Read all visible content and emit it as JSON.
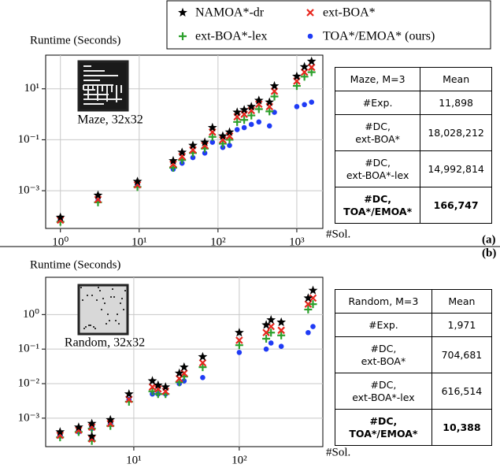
{
  "legend_corner": "top",
  "chart_data": [
    {
      "type": "scatter",
      "panel": "(a)",
      "inset_label": "Maze, 32x32",
      "x_label": "#Sol.",
      "y_label": "Runtime (Seconds)",
      "log_x": true,
      "log_y": true,
      "grid": true,
      "xlim": [
        0.65,
        2140
      ],
      "ylim": [
        3.3e-05,
        210
      ],
      "xticks": [
        {
          "value": 1,
          "label": "10⁰"
        },
        {
          "value": 10,
          "label": "10¹"
        },
        {
          "value": 100,
          "label": "10²"
        },
        {
          "value": 1000,
          "label": "10³"
        }
      ],
      "yticks": [
        {
          "value": 0.001,
          "label": "10⁻³"
        },
        {
          "value": 0.1,
          "label": "10⁻¹"
        },
        {
          "value": 10,
          "label": "10¹"
        }
      ],
      "x": [
        1,
        3,
        9.5,
        27,
        35,
        48,
        68,
        85,
        115,
        140,
        175,
        215,
        265,
        330,
        450,
        520,
        1000,
        1250,
        1540
      ],
      "series": [
        {
          "name": "NAMOA*-dr",
          "color": "#000000",
          "marker": "star",
          "values": [
            9e-05,
            0.00066,
            0.0023,
            0.015,
            0.032,
            0.06,
            0.08,
            0.3,
            0.14,
            0.2,
            1.2,
            1.5,
            2,
            3.5,
            3,
            13,
            31,
            73,
            120
          ]
        },
        {
          "name": "ext-BOA*",
          "color": "#e8271e",
          "marker": "x",
          "values": [
            7e-05,
            0.00045,
            0.0017,
            0.011,
            0.022,
            0.04,
            0.06,
            0.2,
            0.1,
            0.14,
            0.8,
            1,
            1.4,
            2.5,
            2,
            8,
            20,
            45,
            70
          ]
        },
        {
          "name": "ext-BOA*-lex",
          "color": "#2ca02c",
          "marker": "plus",
          "values": [
            6e-05,
            0.00035,
            0.0014,
            0.008,
            0.016,
            0.03,
            0.045,
            0.13,
            0.07,
            0.1,
            0.5,
            0.6,
            0.9,
            1.6,
            1.3,
            5,
            13,
            30,
            45
          ]
        },
        {
          "name": "TOA*/EMOA* (ours)",
          "color": "#1f3bf5",
          "marker": "circle",
          "values": [
            7e-05,
            0.0004,
            0.0016,
            0.007,
            0.012,
            0.02,
            0.03,
            0.08,
            0.05,
            0.06,
            0.25,
            0.3,
            0.4,
            0.5,
            0.35,
            1.2,
            2,
            2.4,
            3
          ]
        }
      ]
    },
    {
      "type": "scatter",
      "panel": "(b)",
      "inset_label": "Random, 32x32",
      "x_label": "#Sol.",
      "y_label": "Runtime (Seconds)",
      "log_x": true,
      "log_y": true,
      "grid": true,
      "xlim": [
        1.46,
        620
      ],
      "ylim": [
        0.00015,
        12
      ],
      "xticks": [
        {
          "value": 10,
          "label": "10¹"
        },
        {
          "value": 100,
          "label": "10²"
        }
      ],
      "yticks": [
        {
          "value": 0.001,
          "label": "10⁻³"
        },
        {
          "value": 0.01,
          "label": "10⁻²"
        },
        {
          "value": 0.1,
          "label": "10⁻¹"
        },
        {
          "value": 1,
          "label": "10⁰"
        }
      ],
      "x": [
        2,
        3,
        4,
        4,
        6,
        9,
        15,
        17,
        20,
        27,
        30,
        45,
        100,
        180,
        200,
        250,
        450,
        500
      ],
      "series": [
        {
          "color": "#000000",
          "marker": "star",
          "values": [
            0.0004,
            0.00055,
            0.0007,
            0.0003,
            0.0009,
            0.005,
            0.012,
            0.009,
            0.008,
            0.02,
            0.03,
            0.06,
            0.3,
            0.5,
            0.7,
            0.6,
            3,
            5
          ]
        },
        {
          "color": "#e8271e",
          "marker": "x",
          "values": [
            0.00032,
            0.00045,
            0.00055,
            0.00025,
            0.0007,
            0.0035,
            0.008,
            0.007,
            0.006,
            0.014,
            0.02,
            0.04,
            0.18,
            0.3,
            0.45,
            0.35,
            2,
            3
          ]
        },
        {
          "color": "#2ca02c",
          "marker": "plus",
          "values": [
            0.00028,
            0.0004,
            0.0005,
            0.00022,
            0.0006,
            0.003,
            0.006,
            0.005,
            0.005,
            0.011,
            0.016,
            0.03,
            0.13,
            0.2,
            0.3,
            0.25,
            1.4,
            2
          ]
        },
        {
          "color": "#1f3bf5",
          "marker": "circle",
          "values": [
            0.0003,
            0.0004,
            0.0005,
            0.00025,
            0.00065,
            0.0035,
            0.005,
            0.005,
            0.005,
            0.01,
            0.012,
            0.015,
            0.08,
            0.1,
            0.15,
            0.12,
            0.3,
            0.45
          ]
        }
      ]
    }
  ],
  "tables": [
    {
      "header": [
        "Maze, M=3",
        "Mean"
      ],
      "rows": [
        [
          "#Exp.",
          "11,898"
        ],
        [
          "#DC,\next-BOA*",
          "18,028,212"
        ],
        [
          "#DC,\next-BOA*-lex",
          "14,992,814"
        ],
        [
          "#DC,\nTOA*/EMOA*",
          "166,747"
        ]
      ]
    },
    {
      "header": [
        "Random, M=3",
        "Mean"
      ],
      "rows": [
        [
          "#Exp.",
          "1,971"
        ],
        [
          "#DC,\next-BOA*",
          "704,681"
        ],
        [
          "#DC,\next-BOA*-lex",
          "616,514"
        ],
        [
          "#DC,\nTOA*/EMOA*",
          "10,388"
        ]
      ]
    }
  ]
}
